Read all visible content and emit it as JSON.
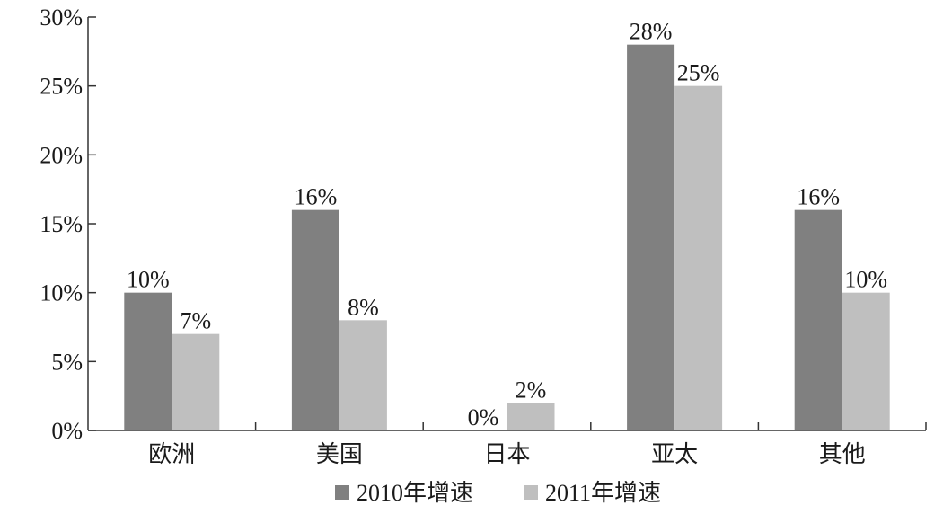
{
  "chart_data": {
    "type": "bar",
    "title": "",
    "xlabel": "",
    "ylabel": "",
    "categories": [
      "欧洲",
      "美国",
      "日本",
      "亚太",
      "其他"
    ],
    "series": [
      {
        "name": "2010年增速",
        "values": [
          10,
          16,
          0,
          28,
          16
        ],
        "labels": [
          "10%",
          "16%",
          "0%",
          "28%",
          "16%"
        ],
        "color": "#808080"
      },
      {
        "name": "2011年增速",
        "values": [
          7,
          8,
          2,
          25,
          10
        ],
        "labels": [
          "7%",
          "8%",
          "2%",
          "25%",
          "10%"
        ],
        "color": "#bfbfbf"
      }
    ],
    "ylim": [
      0,
      30
    ],
    "yticks": [
      0,
      5,
      10,
      15,
      20,
      25,
      30
    ],
    "ytick_labels": [
      "0%",
      "5%",
      "10%",
      "15%",
      "20%",
      "25%",
      "30%"
    ],
    "grid": false,
    "legend_position": "bottom"
  }
}
